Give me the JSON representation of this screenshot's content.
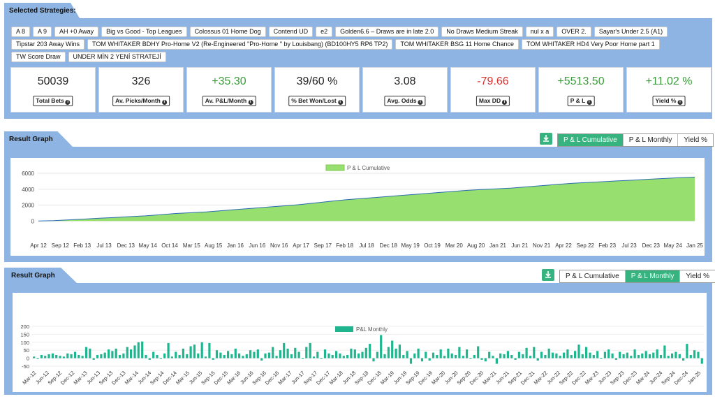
{
  "strategies": {
    "title": "Selected Strategies:",
    "chips": [
      "A 8",
      "A 9",
      "AH +0 Away",
      "Big vs Good - Top Leagues",
      "Colossus 01 Home Dog",
      "Contend UD",
      "e2",
      "Golden6.6 – Draws are in late 2.0",
      "No Draws Medium Streak",
      "nul x a",
      "OVER 2.",
      "Sayar's Under 2.5 (A1)",
      "Tipstar 203 Away Wins",
      "TOM WHITAKER BDHY Pro-Home V2 (Re-Engineered \"Pro-Home \" by Louisbang) (BD100HY5 RP6 TP2)",
      "TOM WHITAKER BSG 11 Home Chance",
      "TOM WHITAKER HD4 Very Poor Home part 1",
      "TW Score Draw",
      "UNDER MİN 2 YENİ STRATEJİ"
    ]
  },
  "stats": [
    {
      "value": "50039",
      "label": "Total Bets",
      "tone": "dark"
    },
    {
      "value": "326",
      "label": "Av. Picks/Month",
      "tone": "dark"
    },
    {
      "value": "+35.30",
      "label": "Av. P&L/Month",
      "tone": "green"
    },
    {
      "value": "39/60 %",
      "label": "% Bet Won/Lost",
      "tone": "dark"
    },
    {
      "value": "3.08",
      "label": "Avg. Odds",
      "tone": "dark"
    },
    {
      "value": "-79.66",
      "label": "Max DD",
      "tone": "red"
    },
    {
      "value": "+5513.50",
      "label": "P & L",
      "tone": "green"
    },
    {
      "value": "+11.02 %",
      "label": "Yield %",
      "tone": "green"
    }
  ],
  "graph1": {
    "title": "Result Graph",
    "buttons": [
      "P & L Cumulative",
      "P & L Monthly",
      "Yield %"
    ],
    "active": 0
  },
  "graph2": {
    "title": "Result Graph",
    "buttons": [
      "P & L Cumulative",
      "P & L Monthly",
      "Yield %"
    ],
    "active": 1
  },
  "colors": {
    "panel": "#8db4e2",
    "accent": "#36b37e",
    "cum_fill": "#97e06f",
    "bar": "#1fb68f"
  },
  "chart_data": [
    {
      "type": "area",
      "legend": "P & L Cumulative",
      "x_tick_labels": [
        "Apr 12",
        "Sep 12",
        "Feb 13",
        "Jul 13",
        "Dec 13",
        "May 14",
        "Oct 14",
        "Mar 15",
        "Aug 15",
        "Jan 16",
        "Jun 16",
        "Nov 16",
        "Apr 17",
        "Sep 17",
        "Feb 18",
        "Jul 18",
        "Dec 18",
        "May 19",
        "Oct 19",
        "Mar 20",
        "Aug 20",
        "Jan 21",
        "Jun 21",
        "Nov 21",
        "Apr 22",
        "Sep 22",
        "Feb 23",
        "Jul 23",
        "Dec 23",
        "May 24",
        "Jan 25"
      ],
      "y_ticks": [
        0,
        2000,
        4000,
        6000
      ],
      "ylim": [
        -500,
        6000
      ],
      "series": [
        {
          "name": "P & L Cumulative",
          "values": [
            0,
            50,
            150,
            250,
            350,
            450,
            550,
            650,
            800,
            950,
            1050,
            1150,
            1300,
            1450,
            1600,
            1750,
            1900,
            2050,
            2250,
            2450,
            2650,
            2800,
            2950,
            3100,
            3250,
            3400,
            3550,
            3700,
            3850,
            3950,
            4050,
            4150,
            4300,
            4450,
            4600,
            4750,
            4850,
            4950,
            5050,
            5150,
            5250,
            5350,
            5450,
            5513
          ]
        }
      ]
    },
    {
      "type": "bar",
      "legend": "P&L Monthly",
      "x_tick_labels": [
        "Mar-12",
        "Jun-12",
        "Sep-12",
        "Dec-12",
        "Mar-13",
        "Jun-13",
        "Sep-13",
        "Dec-13",
        "Mar-14",
        "Jun-14",
        "Sep-14",
        "Dec-14",
        "Mar-15",
        "Jun-15",
        "Sep-15",
        "Dec-15",
        "Mar-16",
        "Jun-16",
        "Sep-16",
        "Dec-16",
        "Mar-17",
        "Jun-17",
        "Sep-17",
        "Dec-17",
        "Mar-18",
        "Jun-18",
        "Sep-18",
        "Dec-18",
        "Mar-19",
        "Jun-19",
        "Sep-19",
        "Dec-19",
        "Mar-20",
        "Jun-20",
        "Sep-20",
        "Dec-20",
        "Mar-21",
        "Jun-21",
        "Sep-21",
        "Dec-21",
        "Mar-22",
        "Jun-22",
        "Sep-22",
        "Dec-22",
        "Mar-23",
        "Jun-23",
        "Sep-23",
        "Dec-23",
        "Mar-24",
        "Jun-24",
        "Sep-24",
        "Dec-24",
        "Jan-25"
      ],
      "y_ticks": [
        -50,
        0,
        50,
        100,
        150,
        200
      ],
      "ylim": [
        -50,
        200
      ],
      "series": [
        {
          "name": "P&L Monthly",
          "values": [
            10,
            -5,
            20,
            15,
            25,
            30,
            20,
            15,
            10,
            30,
            25,
            40,
            20,
            15,
            70,
            60,
            -10,
            20,
            25,
            35,
            55,
            45,
            60,
            20,
            30,
            70,
            55,
            80,
            100,
            105,
            20,
            -10,
            40,
            20,
            -5,
            30,
            95,
            10,
            40,
            20,
            60,
            25,
            75,
            85,
            30,
            100,
            10,
            95,
            -10,
            50,
            35,
            20,
            45,
            25,
            60,
            30,
            15,
            25,
            50,
            40,
            55,
            -15,
            30,
            35,
            70,
            15,
            50,
            95,
            60,
            25,
            65,
            40,
            -5,
            70,
            95,
            10,
            40,
            -5,
            55,
            30,
            20,
            45,
            30,
            15,
            20,
            60,
            55,
            30,
            40,
            65,
            90,
            -20,
            40,
            145,
            25,
            70,
            110,
            60,
            85,
            20,
            45,
            -35,
            30,
            60,
            -20,
            40,
            -15,
            35,
            20,
            55,
            15,
            60,
            30,
            20,
            70,
            15,
            55,
            -5,
            20,
            75,
            -10,
            -20,
            40,
            15,
            -35,
            30,
            25,
            45,
            20,
            -10,
            40,
            25,
            65,
            15,
            70,
            -15,
            40,
            20,
            60,
            35,
            30,
            15,
            35,
            55,
            20,
            45,
            85,
            25,
            70,
            35,
            20,
            45,
            -5,
            40,
            55,
            30,
            -10,
            40,
            25,
            35,
            15,
            55,
            20,
            30,
            45,
            25,
            35,
            55,
            20,
            80,
            15,
            30,
            40,
            25,
            -15,
            90,
            20,
            50,
            40,
            -35
          ]
        }
      ]
    }
  ]
}
